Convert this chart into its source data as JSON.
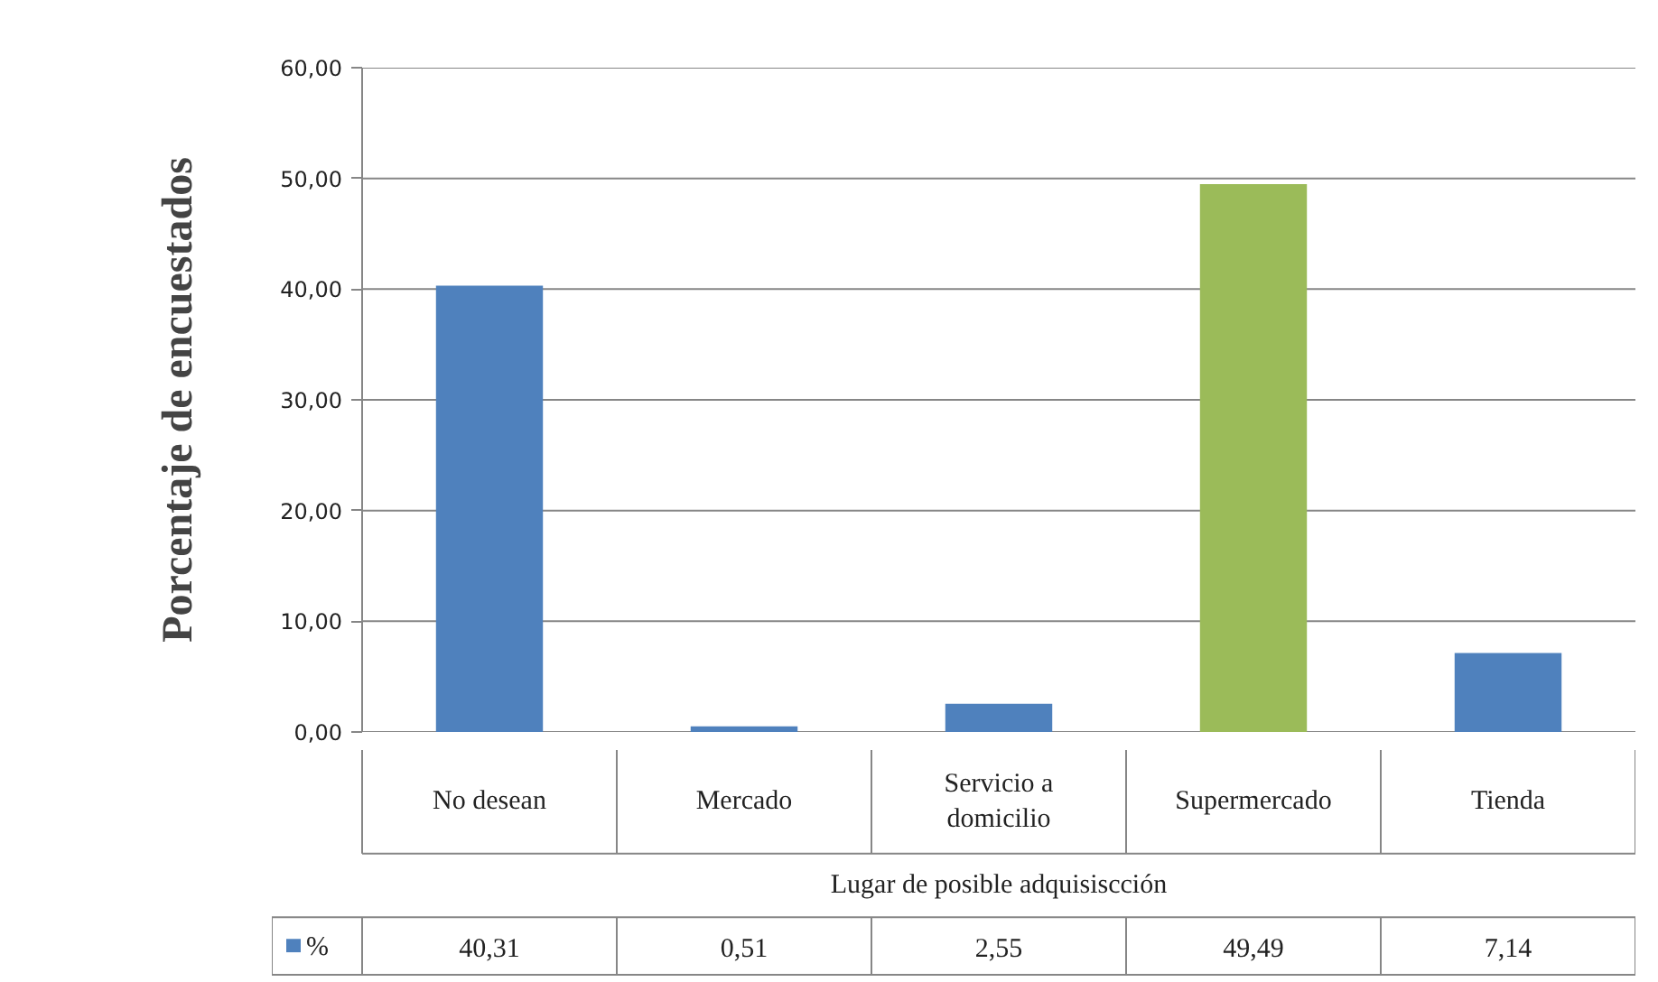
{
  "chart_data": {
    "type": "bar",
    "ylabel": "Porcentaje de encuestados",
    "xlabel": "Lugar de posible adquisiscción",
    "categories": [
      "No desean",
      "Mercado",
      "Servicio a domicilio",
      "Supermercado",
      "Tienda"
    ],
    "series": [
      {
        "name": "%",
        "color": "#4f81bd",
        "colors": [
          "#4f81bd",
          "#4f81bd",
          "#4f81bd",
          "#9bbb59",
          "#4f81bd"
        ],
        "values": [
          40.31,
          0.51,
          2.55,
          49.49,
          7.14
        ],
        "value_labels": [
          "40,31",
          "0,51",
          "2,55",
          "49,49",
          "7,14"
        ]
      }
    ],
    "ylim": [
      0,
      60
    ],
    "yticks": [
      {
        "value": 0,
        "label": "0,00"
      },
      {
        "value": 10,
        "label": "10,00"
      },
      {
        "value": 20,
        "label": "20,00"
      },
      {
        "value": 30,
        "label": "30,00"
      },
      {
        "value": 40,
        "label": "40,00"
      },
      {
        "value": 50,
        "label": "50,00"
      },
      {
        "value": 60,
        "label": "60,00"
      }
    ],
    "grid": "y",
    "legend": "bottom left"
  }
}
